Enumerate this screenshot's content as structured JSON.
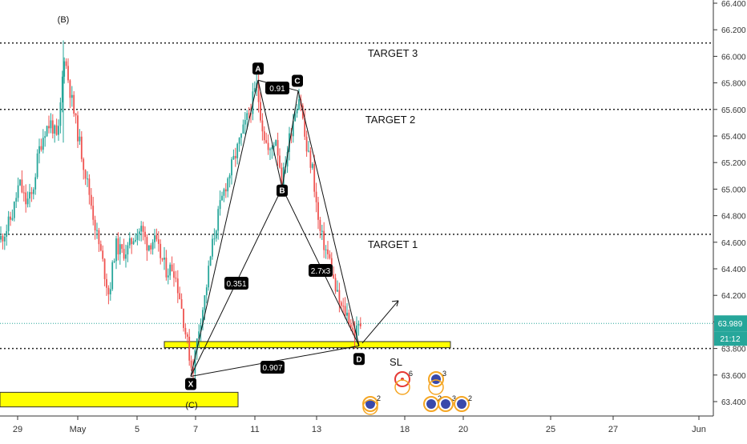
{
  "chart_data": {
    "type": "candlestick",
    "title": "",
    "xlabel": "",
    "ylabel": "",
    "ylim": [
      63.3,
      66.45
    ],
    "x_ticks": [
      "29",
      "May",
      "5",
      "7",
      "11",
      "13",
      "18",
      "20",
      "25",
      "27",
      "Jun"
    ],
    "y_ticks": [
      "66.400",
      "66.200",
      "66.000",
      "65.800",
      "65.600",
      "65.400",
      "65.200",
      "65.000",
      "64.800",
      "64.600",
      "64.400",
      "64.200",
      "64.000",
      "63.800",
      "63.600",
      "63.400"
    ],
    "price_series": [
      {
        "x": 0,
        "y": 64.62
      },
      {
        "x": 8,
        "y": 64.7
      },
      {
        "x": 16,
        "y": 64.82
      },
      {
        "x": 24,
        "y": 65.05
      },
      {
        "x": 32,
        "y": 64.9
      },
      {
        "x": 40,
        "y": 64.95
      },
      {
        "x": 48,
        "y": 65.28
      },
      {
        "x": 56,
        "y": 65.45
      },
      {
        "x": 64,
        "y": 65.5
      },
      {
        "x": 72,
        "y": 65.35
      },
      {
        "x": 80,
        "y": 66.02
      },
      {
        "x": 88,
        "y": 65.72
      },
      {
        "x": 96,
        "y": 65.45
      },
      {
        "x": 104,
        "y": 65.2
      },
      {
        "x": 112,
        "y": 64.95
      },
      {
        "x": 120,
        "y": 64.68
      },
      {
        "x": 128,
        "y": 64.45
      },
      {
        "x": 136,
        "y": 64.2
      },
      {
        "x": 144,
        "y": 64.58
      },
      {
        "x": 152,
        "y": 64.52
      },
      {
        "x": 160,
        "y": 64.55
      },
      {
        "x": 168,
        "y": 64.66
      },
      {
        "x": 176,
        "y": 64.7
      },
      {
        "x": 184,
        "y": 64.58
      },
      {
        "x": 192,
        "y": 64.62
      },
      {
        "x": 200,
        "y": 64.5
      },
      {
        "x": 208,
        "y": 64.38
      },
      {
        "x": 216,
        "y": 64.42
      },
      {
        "x": 224,
        "y": 64.2
      },
      {
        "x": 232,
        "y": 63.9
      },
      {
        "x": 240,
        "y": 63.62
      },
      {
        "x": 248,
        "y": 63.95
      },
      {
        "x": 256,
        "y": 64.2
      },
      {
        "x": 264,
        "y": 64.55
      },
      {
        "x": 272,
        "y": 64.8
      },
      {
        "x": 280,
        "y": 65.0
      },
      {
        "x": 288,
        "y": 65.15
      },
      {
        "x": 296,
        "y": 65.3
      },
      {
        "x": 304,
        "y": 65.45
      },
      {
        "x": 312,
        "y": 65.6
      },
      {
        "x": 320,
        "y": 65.78
      },
      {
        "x": 328,
        "y": 65.45
      },
      {
        "x": 336,
        "y": 65.25
      },
      {
        "x": 344,
        "y": 65.4
      },
      {
        "x": 352,
        "y": 65.05
      },
      {
        "x": 360,
        "y": 65.35
      },
      {
        "x": 368,
        "y": 65.6
      },
      {
        "x": 374,
        "y": 65.72
      },
      {
        "x": 382,
        "y": 65.3
      },
      {
        "x": 390,
        "y": 65.15
      },
      {
        "x": 398,
        "y": 64.7
      },
      {
        "x": 406,
        "y": 64.55
      },
      {
        "x": 412,
        "y": 64.45
      },
      {
        "x": 418,
        "y": 64.25
      },
      {
        "x": 426,
        "y": 64.1
      },
      {
        "x": 434,
        "y": 64.05
      },
      {
        "x": 442,
        "y": 63.9
      },
      {
        "x": 450,
        "y": 63.99
      }
    ],
    "harmonic_points": [
      {
        "label": "X",
        "x": 238,
        "y": 63.59
      },
      {
        "label": "A",
        "x": 322,
        "y": 65.82
      },
      {
        "label": "B",
        "x": 352,
        "y": 65.01
      },
      {
        "label": "C",
        "x": 372,
        "y": 65.74
      },
      {
        "label": "D",
        "x": 448,
        "y": 63.82
      }
    ],
    "ratios": [
      "0.91",
      "0.351",
      "2.7x3",
      "0.907"
    ],
    "levels": [
      {
        "label": "TARGET 3",
        "y": 66.1
      },
      {
        "label": "TARGET 2",
        "y": 65.6
      },
      {
        "label": "TARGET 1",
        "y": 64.66
      },
      {
        "label": "",
        "y": 63.8
      }
    ],
    "zones": [
      {
        "y_from": 63.806,
        "y_to": 63.852
      },
      {
        "y_from": 63.36,
        "y_to": 63.47
      }
    ],
    "wave_labels": [
      "(B)",
      "(C)"
    ],
    "current_price": {
      "value": "63.989",
      "label": "63.989",
      "countdown": "21:12"
    },
    "sl_label": "SL",
    "events": [
      {
        "label": "2"
      },
      {
        "label": "6"
      },
      {
        "label": "2"
      },
      {
        "label": "3"
      },
      {
        "label": "2"
      },
      {
        "label": "3"
      }
    ],
    "colors": {
      "up": "#26a69a",
      "down": "#ef5350",
      "zone": "#ffff00",
      "current_price": "#26a69a",
      "label_bg": "#000000",
      "event_ring": "#f5a623",
      "event_warn": "#e53935"
    }
  }
}
